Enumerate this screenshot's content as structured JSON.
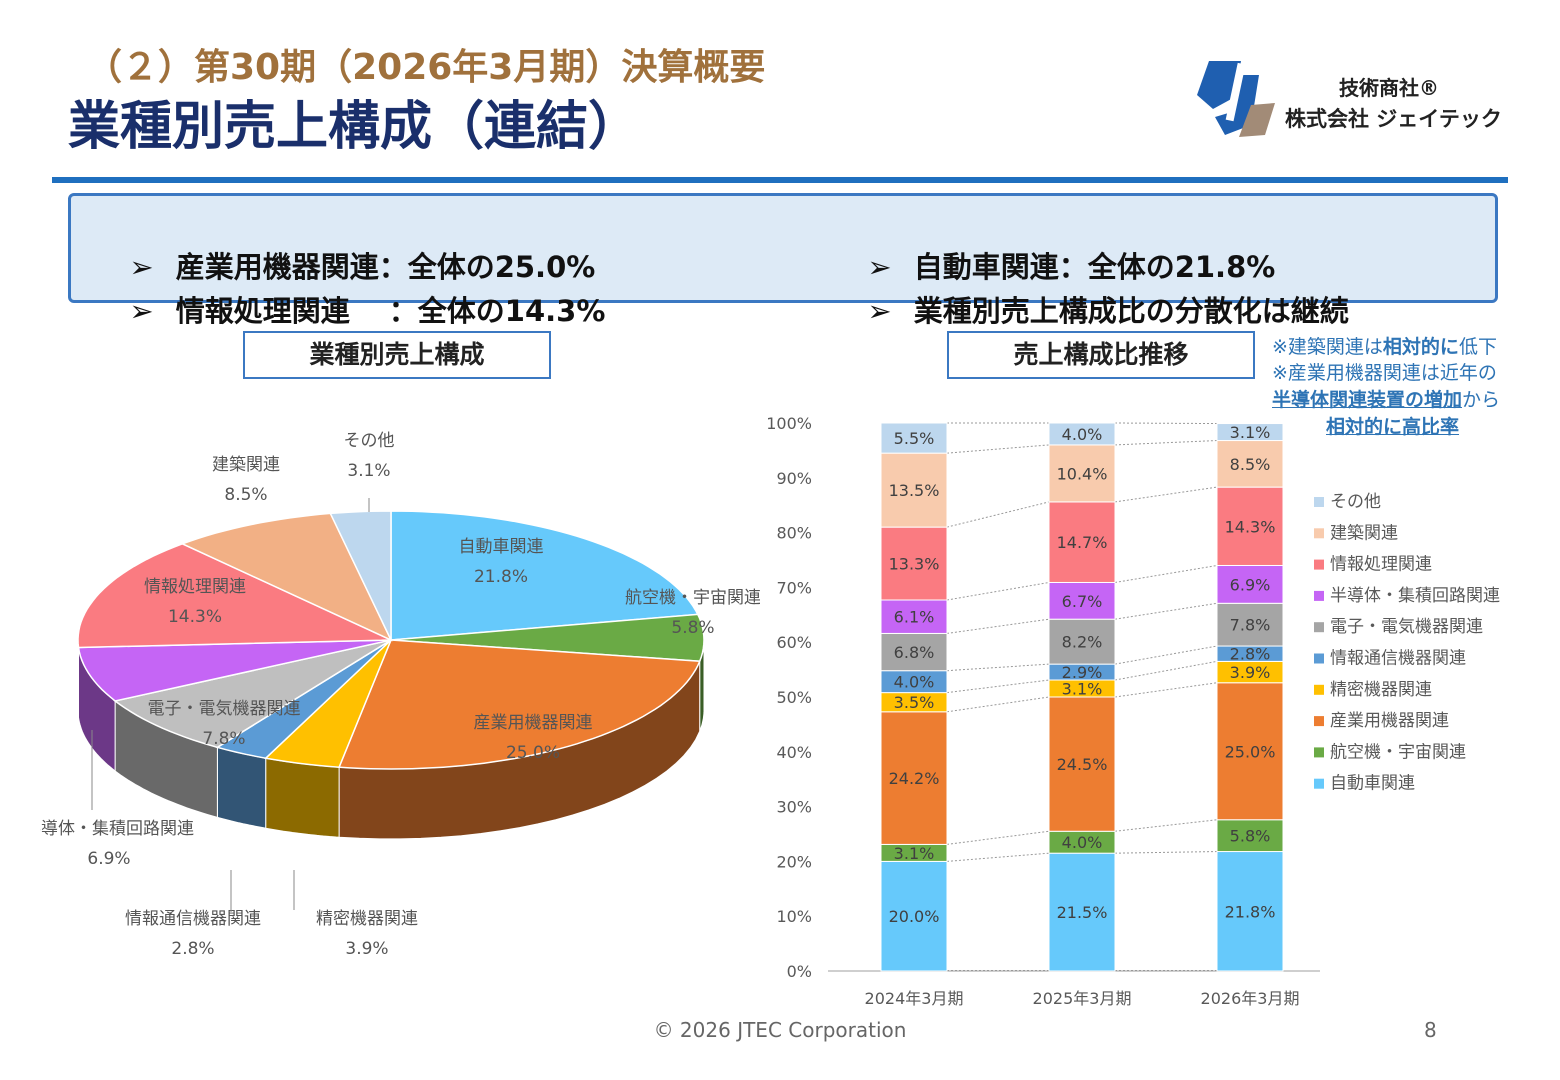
{
  "header": {
    "subtitle": "（２）第30期（2026年3月期）決算概要",
    "title": "業種別売上構成（連結）"
  },
  "logo": {
    "line1": "技術商社®",
    "line2": "株式会社 ジェイテック"
  },
  "summary": {
    "items": [
      "産業用機器関連：全体の25.0%",
      "自動車関連：全体の21.8%",
      "情報処理関連　 ：全体の14.3%",
      "業種別売上構成比の分散化は継続"
    ],
    "bullet": "➢"
  },
  "section_labels": {
    "pie": "業種別売上構成",
    "bar": "売上構成比推移"
  },
  "notes": {
    "line1_a": "※建築関連は",
    "line1_b": "相対的に",
    "line1_c": "低下",
    "line2": "※産業用機器関連は近年の",
    "line3_a": "半導体関連装置の増加",
    "line3_b": "から",
    "line4": "相対的に高比率"
  },
  "footer": {
    "copyright": "© 2026 JTEC Corporation",
    "page": "8"
  },
  "chart_data": [
    {
      "type": "pie",
      "title": "業種別売上構成",
      "slices": [
        {
          "label": "自動車関連",
          "value": 21.8,
          "display": "21.8%",
          "color": "#66c9fb"
        },
        {
          "label": "航空機・宇宙関連",
          "value": 5.8,
          "display": "5.8%",
          "color": "#6aaa45"
        },
        {
          "label": "産業用機器関連",
          "value": 25.0,
          "display": "25.0%",
          "color": "#ed7d31"
        },
        {
          "label": "精密機器関連",
          "value": 3.9,
          "display": "3.9%",
          "color": "#ffc000"
        },
        {
          "label": "情報通信機器関連",
          "value": 2.8,
          "display": "2.8%",
          "color": "#5b9bd5"
        },
        {
          "label": "電子・電気機器関連",
          "value": 7.8,
          "display": "7.8%",
          "color": "#bfbfbf"
        },
        {
          "label": "半導体・集積回路関連",
          "value": 6.9,
          "display": "6.9%",
          "color": "#c565f5"
        },
        {
          "label": "情報処理関連",
          "value": 14.3,
          "display": "14.3%",
          "color": "#fa7b81"
        },
        {
          "label": "建築関連",
          "value": 8.5,
          "display": "8.5%",
          "color": "#f2b085"
        },
        {
          "label": "その他",
          "value": 3.1,
          "display": "3.1%",
          "color": "#bdd7ee"
        }
      ]
    },
    {
      "type": "bar",
      "stacked": true,
      "percent": true,
      "title": "売上構成比推移",
      "categories": [
        "2024年3月期",
        "2025年3月期",
        "2026年3月期"
      ],
      "yticks": [
        "0%",
        "10%",
        "20%",
        "30%",
        "40%",
        "50%",
        "60%",
        "70%",
        "80%",
        "90%",
        "100%"
      ],
      "ylim": [
        0,
        100
      ],
      "legend_position": "right",
      "series": [
        {
          "name": "自動車関連",
          "color": "#66c9fb",
          "values": [
            20.0,
            21.5,
            21.8
          ],
          "labels": [
            "20.0%",
            "21.5%",
            "21.8%"
          ]
        },
        {
          "name": "航空機・宇宙関連",
          "color": "#6aaa45",
          "values": [
            3.1,
            4.0,
            5.8
          ],
          "labels": [
            "3.1%",
            "4.0%",
            "5.8%"
          ]
        },
        {
          "name": "産業用機器関連",
          "color": "#ed7d31",
          "values": [
            24.2,
            24.5,
            25.0
          ],
          "labels": [
            "24.2%",
            "24.5%",
            "25.0%"
          ]
        },
        {
          "name": "精密機器関連",
          "color": "#ffc000",
          "values": [
            3.5,
            3.1,
            3.9
          ],
          "labels": [
            "3.5%",
            "3.1%",
            "3.9%"
          ]
        },
        {
          "name": "情報通信機器関連",
          "color": "#5b9bd5",
          "values": [
            4.0,
            2.9,
            2.8
          ],
          "labels": [
            "4.0%",
            "2.9%",
            "2.8%"
          ]
        },
        {
          "name": "電子・電気機器関連",
          "color": "#a5a5a5",
          "values": [
            6.8,
            8.2,
            7.8
          ],
          "labels": [
            "6.8%",
            "8.2%",
            "7.8%"
          ]
        },
        {
          "name": "半導体・集積回路関連",
          "color": "#c565f5",
          "values": [
            6.1,
            6.7,
            6.9
          ],
          "labels": [
            "6.1%",
            "6.7%",
            "6.9%"
          ]
        },
        {
          "name": "情報処理関連",
          "color": "#fa7b81",
          "values": [
            13.3,
            14.7,
            14.3
          ],
          "labels": [
            "13.3%",
            "14.7%",
            "14.3%"
          ]
        },
        {
          "name": "建築関連",
          "color": "#f8cbad",
          "values": [
            13.5,
            10.4,
            8.5
          ],
          "labels": [
            "13.5%",
            "10.4%",
            "8.5%"
          ]
        },
        {
          "name": "その他",
          "color": "#bdd7ee",
          "values": [
            5.5,
            4.0,
            3.1
          ],
          "labels": [
            "5.5%",
            "4.0%",
            "3.1%"
          ]
        }
      ]
    }
  ]
}
